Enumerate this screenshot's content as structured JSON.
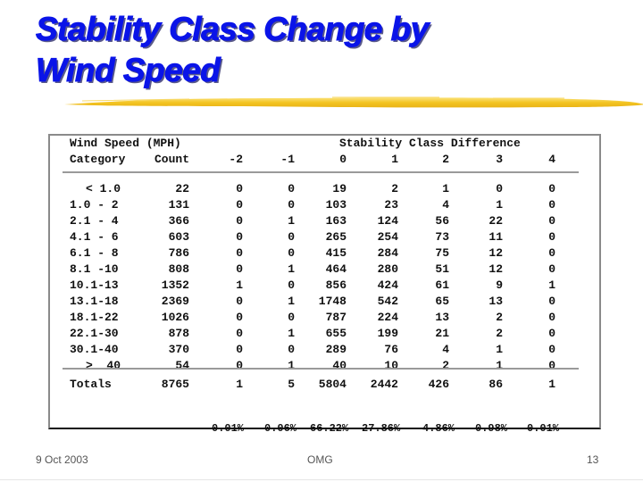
{
  "slide": {
    "title_line1": "Stability Class Change by",
    "title_line2": "Wind Speed",
    "colors": {
      "title": "#0a14e8",
      "accent_stroke": "#f2c21f"
    }
  },
  "table": {
    "header_row1": {
      "category_label": "Wind Speed (MPH)",
      "group_label": "Stability Class Difference"
    },
    "header_row2": [
      "Category",
      "Count",
      "-2",
      "-1",
      "0",
      "1",
      "2",
      "3",
      "4"
    ],
    "rows": [
      [
        "< 1.0",
        "22",
        "0",
        "0",
        "19",
        "2",
        "1",
        "0",
        "0"
      ],
      [
        "1.0 - 2",
        "131",
        "0",
        "0",
        "103",
        "23",
        "4",
        "1",
        "0"
      ],
      [
        "2.1 - 4",
        "366",
        "0",
        "1",
        "163",
        "124",
        "56",
        "22",
        "0"
      ],
      [
        "4.1 - 6",
        "603",
        "0",
        "0",
        "265",
        "254",
        "73",
        "11",
        "0"
      ],
      [
        "6.1 - 8",
        "786",
        "0",
        "0",
        "415",
        "284",
        "75",
        "12",
        "0"
      ],
      [
        "8.1 -10",
        "808",
        "0",
        "1",
        "464",
        "280",
        "51",
        "12",
        "0"
      ],
      [
        "10.1-13",
        "1352",
        "1",
        "0",
        "856",
        "424",
        "61",
        "9",
        "1"
      ],
      [
        "13.1-18",
        "2369",
        "0",
        "1",
        "1748",
        "542",
        "65",
        "13",
        "0"
      ],
      [
        "18.1-22",
        "1026",
        "0",
        "0",
        "787",
        "224",
        "13",
        "2",
        "0"
      ],
      [
        "22.1-30",
        "878",
        "0",
        "1",
        "655",
        "199",
        "21",
        "2",
        "0"
      ],
      [
        "30.1-40",
        "370",
        "0",
        "0",
        "289",
        "76",
        "4",
        "1",
        "0"
      ],
      [
        ">  40",
        "54",
        "0",
        "1",
        "40",
        "10",
        "2",
        "1",
        "0"
      ]
    ],
    "totals": [
      "Totals",
      "8765",
      "1",
      "5",
      "5804",
      "2442",
      "426",
      "86",
      "1"
    ],
    "percentages": [
      "0.01%",
      "0.06%",
      "66.22%",
      "27.86%",
      "4.86%",
      "0.98%",
      "0.01%"
    ]
  },
  "footer": {
    "date": "9 Oct  2003",
    "center": "OMG",
    "page_number": "13"
  }
}
